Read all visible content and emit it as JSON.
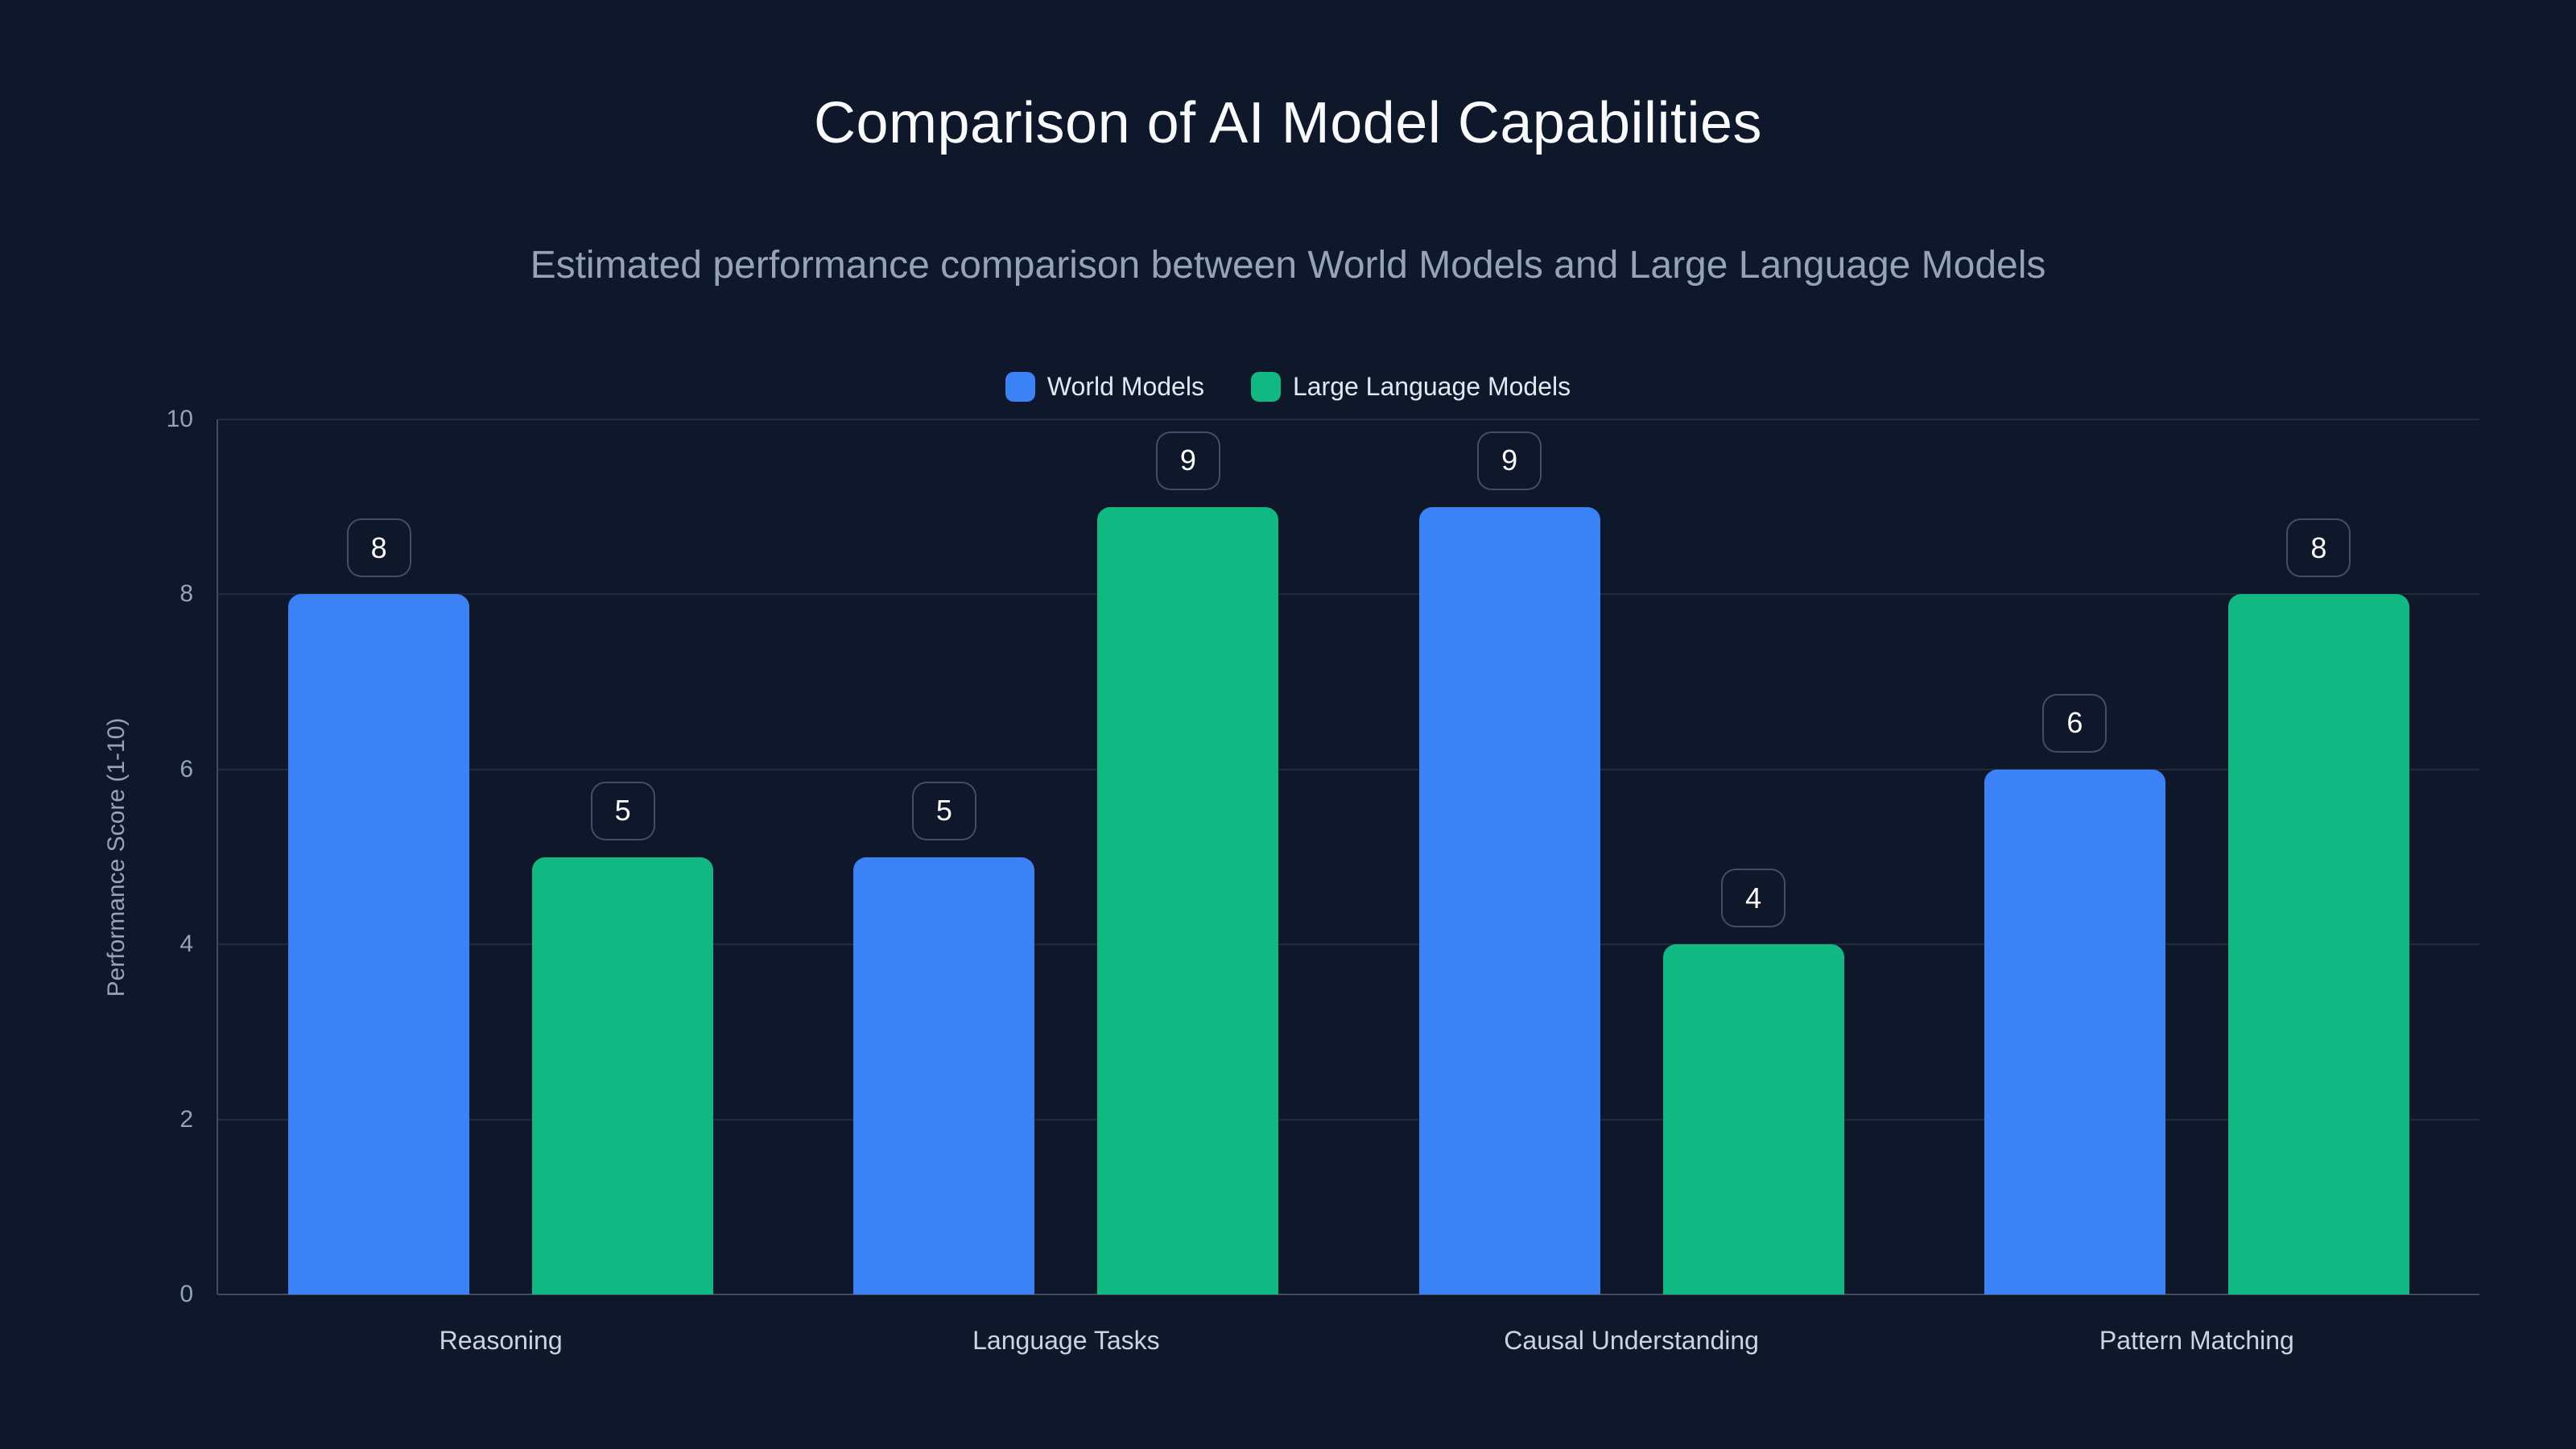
{
  "header": {
    "title": "Comparison of AI Model Capabilities",
    "subtitle": "Estimated performance comparison between World Models and Large Language Models"
  },
  "colors": {
    "background": "#0f172a",
    "title_text": "#f8fafc",
    "subtitle_text": "#94a3b8",
    "axis_text": "#94a3b8",
    "category_text": "#cbd5e1",
    "legend_text": "#e2e8f0",
    "world_models_blue": "#3b82f6",
    "llm_green": "#10b981",
    "badge_text": "#ffffff"
  },
  "chart_data": {
    "type": "bar",
    "title": "Comparison of AI Model Capabilities",
    "subtitle": "Estimated performance comparison between World Models and Large Language Models",
    "categories": [
      "Reasoning",
      "Language Tasks",
      "Causal Understanding",
      "Pattern Matching"
    ],
    "series": [
      {
        "name": "World Models",
        "color": "#3b82f6",
        "values": [
          8,
          5,
          9,
          6
        ]
      },
      {
        "name": "Large Language Models",
        "color": "#10b981",
        "values": [
          5,
          9,
          4,
          8
        ]
      }
    ],
    "ylabel": "Performance Score (1-10)",
    "yticks": [
      0,
      2,
      4,
      6,
      8,
      10
    ],
    "ylim": [
      0,
      10
    ],
    "grid": true,
    "legend_position": "top-center",
    "value_labels": "bordered badge above each bar"
  }
}
